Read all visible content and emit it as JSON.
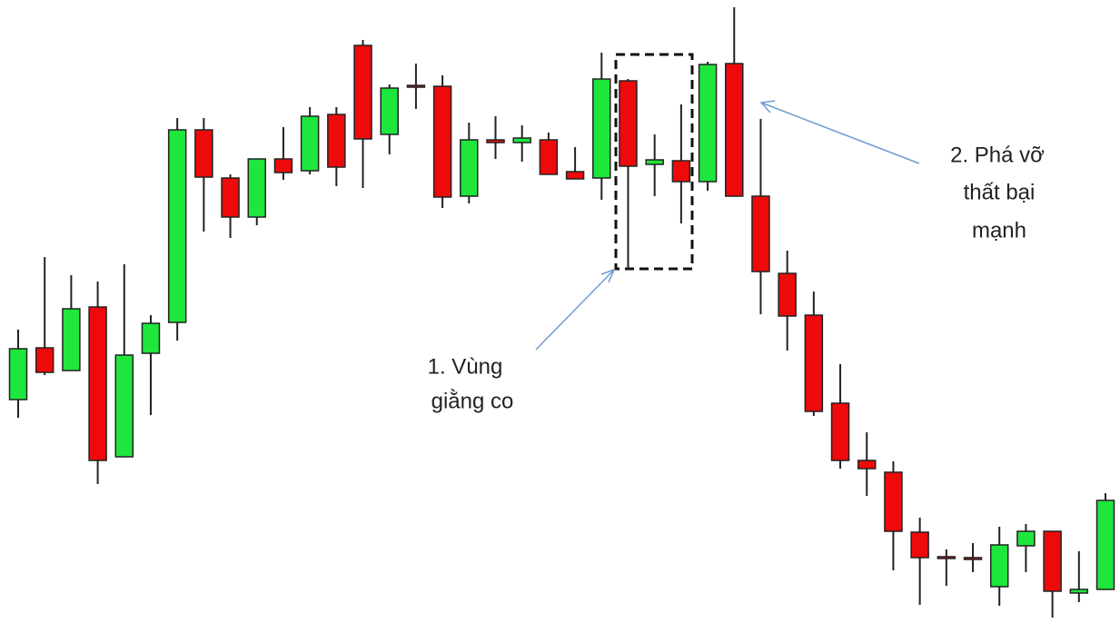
{
  "chart_data": {
    "type": "candlestick",
    "ylim": [
      0,
      686
    ],
    "up_color": "#1ee63c",
    "down_color": "#ee0a0a",
    "open": [
      246,
      303,
      278,
      348,
      183,
      297,
      331,
      543,
      490,
      447,
      511,
      498,
      560,
      636,
      538,
      592,
      591,
      470,
      532,
      529,
      532,
      497,
      490,
      597,
      505,
      509,
      486,
      616,
      470,
      385,
      339,
      242,
      179,
      166,
      100,
      73,
      72,
      40,
      85,
      101,
      33,
      37
    ],
    "high": [
      323,
      403,
      383,
      376,
      395,
      339,
      556,
      556,
      494,
      511,
      546,
      568,
      568,
      642,
      593,
      616,
      603,
      551,
      558,
      548,
      540,
      524,
      628,
      599,
      538,
      571,
      618,
      678,
      555,
      410,
      365,
      285,
      210,
      178,
      116,
      81,
      88,
      106,
      109,
      101,
      79,
      143
    ],
    "low": [
      226,
      273,
      278,
      153,
      183,
      229,
      311,
      431,
      424,
      438,
      488,
      494,
      481,
      479,
      516,
      566,
      457,
      462,
      511,
      508,
      494,
      489,
      466,
      390,
      470,
      440,
      476,
      470,
      340,
      300,
      228,
      170,
      140,
      58,
      20,
      41,
      56,
      19,
      56,
      6,
      23,
      37
    ],
    "close": [
      302,
      276,
      346,
      179,
      295,
      330,
      543,
      491,
      447,
      511,
      496,
      558,
      502,
      533,
      589,
      590,
      469,
      532,
      529,
      534,
      494,
      489,
      599,
      503,
      510,
      486,
      615,
      470,
      387,
      338,
      233,
      179,
      170,
      101,
      72,
      72,
      70,
      86,
      101,
      35,
      37,
      135
    ],
    "annotations": [
      {
        "lines": [
          "1. Vùng",
          "giằng co"
        ]
      },
      {
        "lines": [
          "2. Phá vỡ",
          "thất bại",
          "mạnh"
        ]
      }
    ]
  }
}
